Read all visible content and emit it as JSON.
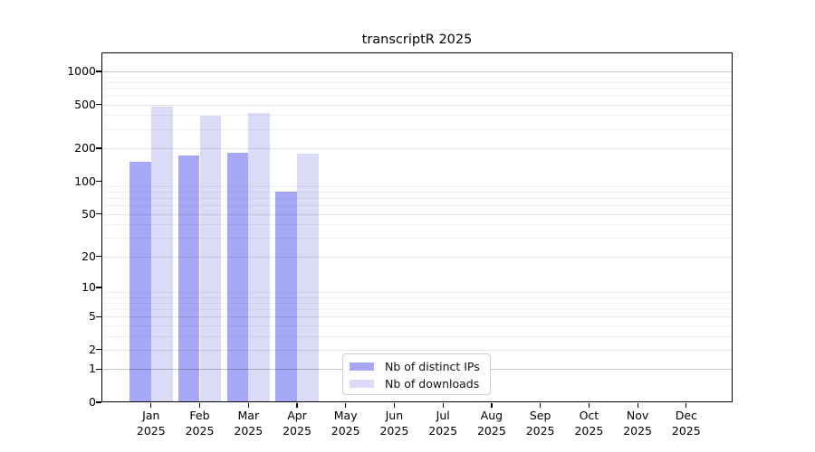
{
  "chart_data": {
    "type": "bar",
    "title": "transcriptR 2025",
    "categories": [
      "Jan 2025",
      "Feb 2025",
      "Mar 2025",
      "Apr 2025",
      "May 2025",
      "Jun 2025",
      "Jul 2025",
      "Aug 2025",
      "Sep 2025",
      "Oct 2025",
      "Nov 2025",
      "Dec 2025"
    ],
    "series": [
      {
        "name": "Nb of distinct IPs",
        "color": "#a7a7f7",
        "values": [
          152,
          172,
          183,
          80,
          null,
          null,
          null,
          null,
          null,
          null,
          null,
          null
        ]
      },
      {
        "name": "Nb of downloads",
        "color": "#dbdbf8",
        "values": [
          480,
          395,
          420,
          180,
          null,
          null,
          null,
          null,
          null,
          null,
          null,
          null
        ]
      }
    ],
    "xlabel": "",
    "ylabel": "",
    "y_ticks": [
      0,
      1,
      2,
      5,
      10,
      20,
      50,
      100,
      200,
      500,
      1000
    ],
    "y_scale": "log10(1+y)",
    "y_top_value": 1458,
    "grid": "horizontal",
    "legend_position": "inside-bottom-center",
    "colors": {
      "axis": "#000000",
      "grid_major": "#c3c3c3",
      "grid_mid": "#e4e4e4",
      "grid_minor": "#f3f3f3",
      "background": "#ffffff"
    }
  }
}
